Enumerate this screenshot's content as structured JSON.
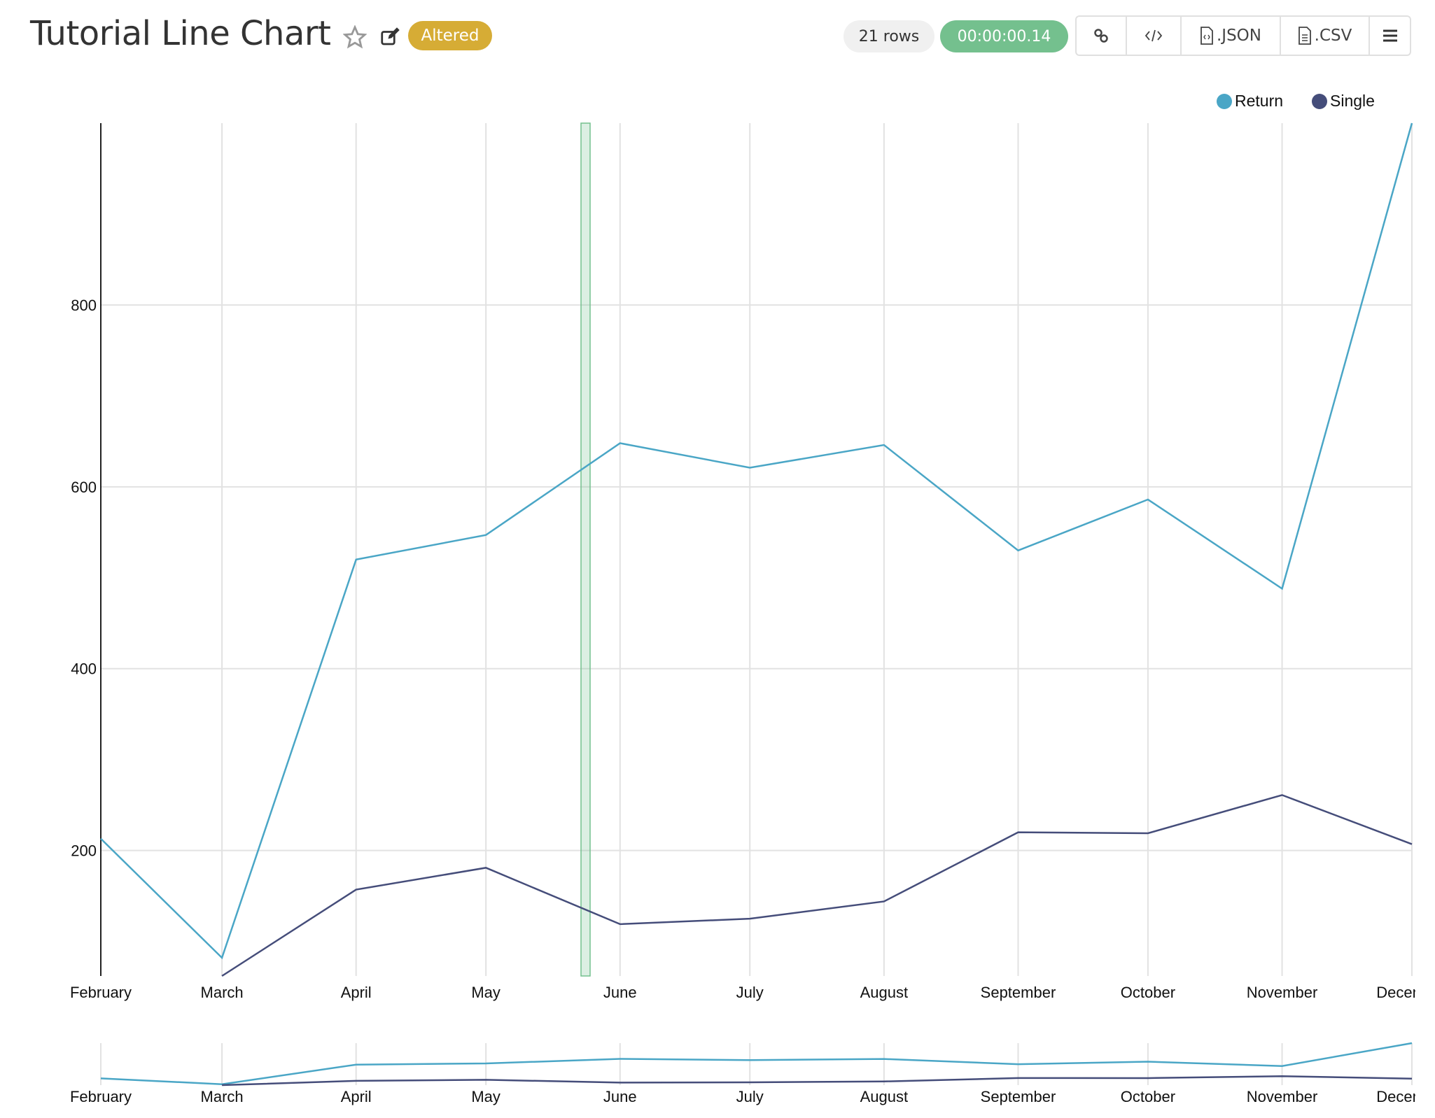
{
  "header": {
    "title": "Tutorial Line Chart",
    "badge": "Altered",
    "row_count": "21 rows",
    "duration": "00:00:00.14",
    "buttons": {
      "json": ".JSON",
      "csv": ".CSV"
    }
  },
  "colors": {
    "return": "#4aa6c6",
    "single": "#454d7a",
    "badge": "#d6ac35",
    "duration": "#74c08e",
    "annotation": "#74c08e"
  },
  "icons": [
    "star-icon",
    "edit-icon",
    "link-icon",
    "code-icon",
    "json-file-icon",
    "csv-file-icon",
    "menu-icon"
  ],
  "chart_data": {
    "type": "line",
    "categories": [
      "February",
      "March",
      "April",
      "May",
      "June",
      "July",
      "August",
      "September",
      "October",
      "November",
      "December"
    ],
    "yticks": [
      "200",
      "400",
      "600",
      "800"
    ],
    "ylim": [
      62,
      1000
    ],
    "grid": true,
    "legend_position": "top-right",
    "series": [
      {
        "name": "Return",
        "values": [
          213,
          82,
          520,
          547,
          648,
          621,
          646,
          530,
          586,
          488,
          1000
        ]
      },
      {
        "name": "Single",
        "values": [
          null,
          62,
          157,
          181,
          119,
          125,
          144,
          220,
          219,
          261,
          207
        ]
      }
    ],
    "has_brush_overview": true
  }
}
